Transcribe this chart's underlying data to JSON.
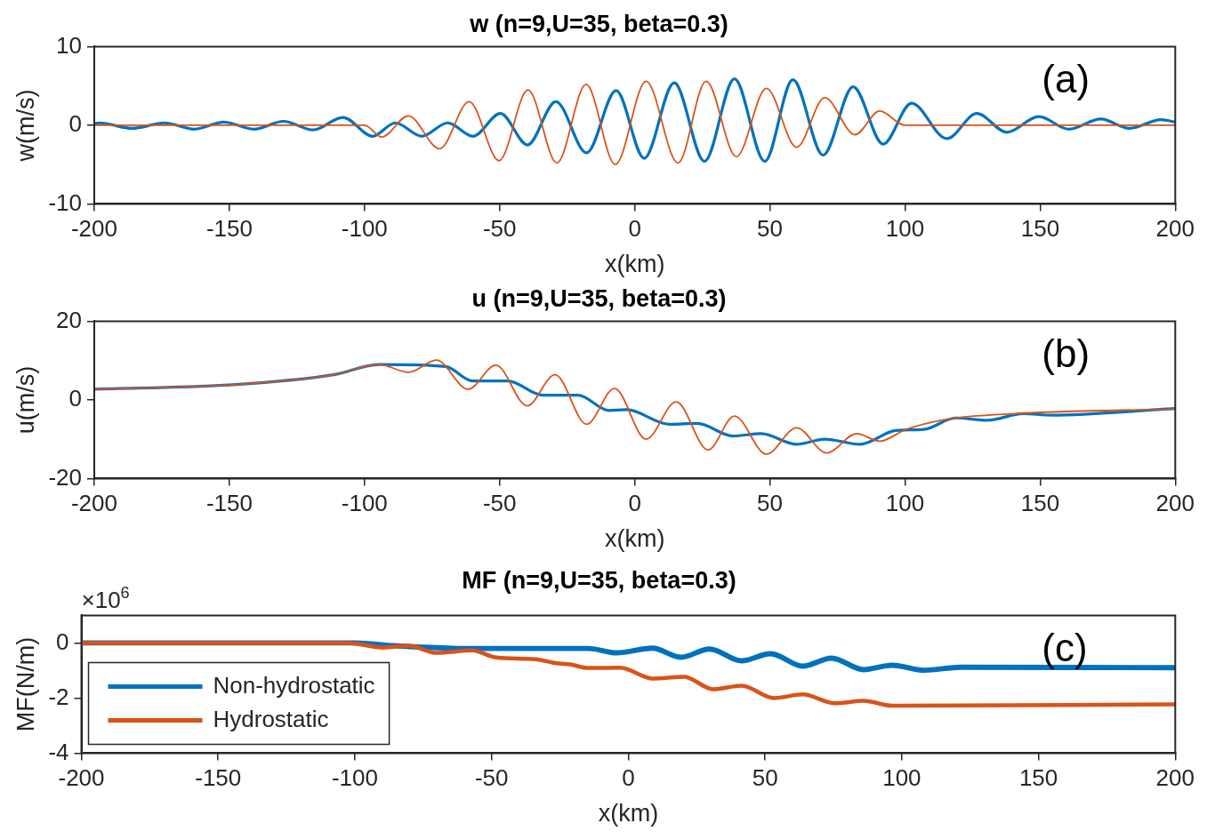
{
  "chart_data": [
    {
      "type": "line",
      "title": "w (n=9,U=35, beta=0.3)",
      "xlabel": "x(km)",
      "ylabel": "w(m/s)",
      "xlim": [
        -200,
        200
      ],
      "xticks": [
        -200,
        -150,
        -100,
        -50,
        0,
        50,
        100,
        150,
        200
      ],
      "ylim": [
        -10,
        10
      ],
      "yticks": [
        -10,
        0,
        10
      ],
      "annotations": [
        "(a)"
      ],
      "series": [
        {
          "color": "#0072bd",
          "x": [
            -200,
            -198,
            -186,
            -174,
            -163,
            -152,
            -141,
            -130,
            -119,
            -108,
            -97,
            -88.6,
            -78.8,
            -69.2,
            -59.9,
            -49.7,
            -39.7,
            -29.2,
            -17.8,
            -6.9,
            3.5,
            14.6,
            25.8,
            36.9,
            48.1,
            58.5,
            69.7,
            80.8,
            91.9,
            102.4,
            115.5,
            126.6,
            137.7,
            149.5,
            160.6,
            172.4,
            183,
            194.8,
            200
          ],
          "values": [
            0.2,
            0.3,
            -0.4,
            0.3,
            -0.5,
            0.4,
            -0.5,
            0.5,
            -0.6,
            1,
            -1.4,
            0.3,
            -1.4,
            0.3,
            -1.4,
            1.5,
            -2.5,
            3,
            -3.5,
            4.4,
            -4.2,
            5.4,
            -4.6,
            5.9,
            -4.6,
            5.8,
            -3.8,
            4.9,
            -2.4,
            2.8,
            -1.7,
            1.5,
            -0.9,
            1.1,
            -0.5,
            0.8,
            -0.4,
            0.7,
            0.4
          ]
        },
        {
          "color": "#d95319",
          "x": [
            -200,
            -100,
            -93.6,
            -83.8,
            -72.2,
            -61.3,
            -50.2,
            -39.5,
            -28.8,
            -18,
            -7.2,
            4.2,
            16,
            26.4,
            37.6,
            48.7,
            59.9,
            70.3,
            81.5,
            90.6,
            100,
            200
          ],
          "values": [
            0,
            0,
            -1.5,
            1.2,
            -3,
            3,
            -4.5,
            4.5,
            -4.8,
            5.2,
            -5,
            5.6,
            -4.8,
            5.6,
            -4,
            4.7,
            -2.8,
            3.5,
            -1.2,
            1.8,
            0,
            0
          ]
        }
      ]
    },
    {
      "type": "line",
      "title": "u (n=9,U=35, beta=0.3)",
      "xlabel": "x(km)",
      "ylabel": "u(m/s)",
      "xlim": [
        -200,
        200
      ],
      "xticks": [
        -200,
        -150,
        -100,
        -50,
        0,
        50,
        100,
        150,
        200
      ],
      "ylim": [
        -20,
        20
      ],
      "yticks": [
        -20,
        0,
        20
      ],
      "annotations": [
        "(b)"
      ],
      "series": [
        {
          "color": "#0072bd",
          "x": [
            -200,
            -150,
            -111.4,
            -94.6,
            -70,
            -60,
            -47,
            -34,
            -21,
            -9.5,
            -3,
            12.7,
            23.2,
            36.3,
            46.8,
            59.9,
            70.3,
            83.4,
            96.5,
            107,
            118.8,
            130.6,
            143.7,
            154.2,
            200
          ],
          "values": [
            2.7,
            3.8,
            6.4,
            9,
            8.5,
            4.8,
            4.8,
            1.2,
            1.2,
            -2.7,
            -2.5,
            -6.2,
            -6,
            -9.2,
            -8.6,
            -11.3,
            -10,
            -11.3,
            -7.8,
            -7.5,
            -4.6,
            -5.2,
            -3.5,
            -3.9,
            -2.2
          ]
        },
        {
          "color": "#d95319",
          "x": [
            -200,
            -150,
            -111.4,
            -94.6,
            -83.6,
            -73.4,
            -61.7,
            -51.4,
            -39.8,
            -29.5,
            -17.8,
            -7.5,
            4.2,
            15.3,
            27.1,
            36.9,
            48.7,
            59.9,
            71,
            82.1,
            90.6,
            100.4,
            114.8,
            141,
            200
          ],
          "values": [
            2.7,
            3.8,
            6.4,
            9,
            7,
            10.1,
            2.7,
            8.8,
            -1.5,
            6.4,
            -6.2,
            2.9,
            -10,
            -0.5,
            -12.7,
            -4.1,
            -13.8,
            -7.1,
            -13.5,
            -8.6,
            -10.5,
            -7.5,
            -5,
            -3.5,
            -2.3
          ]
        }
      ]
    },
    {
      "type": "line",
      "title": "MF (n=9,U=35, beta=0.3)",
      "xlabel": "x(km)",
      "ylabel": "MF(N/m)",
      "xlim": [
        -200,
        200
      ],
      "xticks": [
        -200,
        -150,
        -100,
        -50,
        0,
        50,
        100,
        150,
        200
      ],
      "ylim": [
        -4,
        1
      ],
      "yticks": [
        -4,
        -2,
        0
      ],
      "annotations": [
        "×10$^{6}$",
        "(c)"
      ],
      "legend": "bottom left",
      "series": [
        {
          "name": "Non-hydrostatic",
          "color": "#0072bd",
          "x": [
            -200,
            -100,
            -85.6,
            -59.8,
            -14.6,
            -4.3,
            8.8,
            19.2,
            29.7,
            41.4,
            52,
            63.8,
            74.3,
            86,
            96.5,
            108.3,
            121.4,
            200
          ],
          "values": [
            0,
            0,
            -0.1,
            -0.2,
            -0.2,
            -0.36,
            -0.19,
            -0.52,
            -0.22,
            -0.65,
            -0.39,
            -0.84,
            -0.55,
            -0.97,
            -0.81,
            -0.99,
            -0.88,
            -0.9
          ]
        },
        {
          "name": "Hydrostatic",
          "color": "#d95319",
          "x": [
            -200,
            -102.4,
            -89.6,
            -80.5,
            -70,
            -57.2,
            -48.2,
            -34,
            -26.3,
            -21.2,
            -14.6,
            -3,
            8.8,
            20.4,
            31,
            41.4,
            53.3,
            63.8,
            75.6,
            86,
            96.5,
            200
          ],
          "values": [
            0,
            0,
            -0.17,
            -0.1,
            -0.36,
            -0.27,
            -0.53,
            -0.59,
            -0.74,
            -0.78,
            -0.91,
            -0.9,
            -1.29,
            -1.23,
            -1.68,
            -1.55,
            -2,
            -1.87,
            -2.19,
            -2.1,
            -2.28,
            -2.23
          ]
        }
      ]
    }
  ]
}
